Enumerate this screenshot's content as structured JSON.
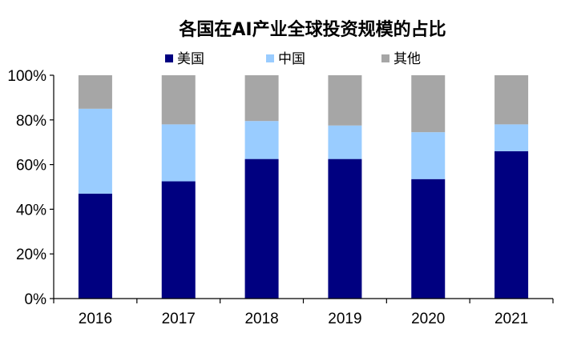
{
  "chart_data": {
    "type": "bar",
    "stacked": true,
    "title": "各国在AI产业全球投资规模的占比",
    "categories": [
      "2016",
      "2017",
      "2018",
      "2019",
      "2020",
      "2021"
    ],
    "series": [
      {
        "name": "美国",
        "color": "#000080",
        "values": [
          47,
          52.5,
          62.5,
          62.5,
          53.5,
          66
        ]
      },
      {
        "name": "中国",
        "color": "#99CCFF",
        "values": [
          38,
          25.5,
          17,
          15,
          21,
          12
        ]
      },
      {
        "name": "其他",
        "color": "#A6A6A6",
        "values": [
          15,
          22,
          20.5,
          22.5,
          25.5,
          22
        ]
      }
    ],
    "ylim": [
      0,
      100
    ],
    "yticks": [
      0,
      20,
      40,
      60,
      80,
      100
    ],
    "ytick_labels": [
      "0%",
      "20%",
      "40%",
      "60%",
      "80%",
      "100%"
    ],
    "grid": false,
    "legend_position": "top"
  }
}
